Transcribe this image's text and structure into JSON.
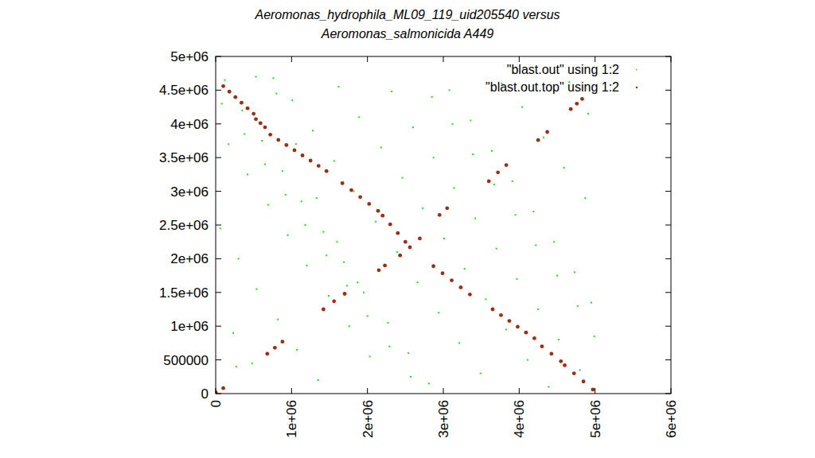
{
  "chart_data": {
    "type": "scatter",
    "title": [
      "Aeromonas_hydrophila_ML09_119_uid205540 versus",
      "Aeromonas_salmonicida A449"
    ],
    "xlim": [
      0,
      6000000
    ],
    "ylim": [
      0,
      5000000
    ],
    "xticks": [
      0,
      {
        "value": 1000000,
        "label": "1e+06"
      },
      {
        "value": 2000000,
        "label": "2e+06"
      },
      {
        "value": 3000000,
        "label": "3e+06"
      },
      {
        "value": 4000000,
        "label": "4e+06"
      },
      {
        "value": 5000000,
        "label": "5e+06"
      },
      {
        "value": 6000000,
        "label": "6e+06"
      }
    ],
    "yticks": [
      0,
      500000,
      {
        "value": 1000000,
        "label": "1e+06"
      },
      {
        "value": 1500000,
        "label": "1.5e+06"
      },
      {
        "value": 2000000,
        "label": "2e+06"
      },
      {
        "value": 2500000,
        "label": "2.5e+06"
      },
      {
        "value": 3000000,
        "label": "3e+06"
      },
      {
        "value": 3500000,
        "label": "3.5e+06"
      },
      {
        "value": 4000000,
        "label": "4e+06"
      },
      {
        "value": 4500000,
        "label": "4.5e+06"
      },
      {
        "value": 5000000,
        "label": "5e+06"
      }
    ],
    "legend": "top-right",
    "series": [
      {
        "name": "\"blast.out\" using 1:2",
        "color": "#22dd22",
        "marker": "square",
        "x": [
          120000,
          350000,
          610000,
          880000,
          1130000,
          1420000,
          1690000,
          1950000,
          2270000,
          2540000,
          2810000,
          3080000,
          3360000,
          3640000,
          3910000,
          4190000,
          4460000,
          4730000,
          4950000,
          230000,
          480000,
          760000,
          1010000,
          1280000,
          1560000,
          1820000,
          2110000,
          2390000,
          2660000,
          2940000,
          3210000,
          3490000,
          3770000,
          4040000,
          4320000,
          4590000,
          4870000,
          60000,
          300000,
          540000,
          820000,
          1070000,
          1350000,
          1620000,
          1890000,
          2180000,
          2460000,
          2730000,
          3010000,
          3280000,
          3560000,
          3830000,
          4110000,
          4390000,
          4660000,
          4910000,
          170000,
          420000,
          690000,
          950000,
          1200000,
          1490000,
          1760000,
          2030000,
          2320000,
          2600000,
          2870000,
          3140000,
          3420000,
          3700000,
          3970000,
          4250000,
          4520000,
          4800000,
          80000,
          380000,
          650000,
          920000,
          1180000,
          1460000,
          1730000,
          2000000,
          2290000,
          2570000,
          2850000,
          3120000,
          3390000,
          3670000,
          3950000,
          4220000,
          4500000,
          4770000,
          4990000,
          270000,
          530000,
          800000,
          1060000,
          1330000,
          1600000,
          1870000
        ],
        "values": [
          4650000,
          4200000,
          3750000,
          3300000,
          2850000,
          2400000,
          1950000,
          1500000,
          1050000,
          600000,
          150000,
          4500000,
          4050000,
          3600000,
          3150000,
          2700000,
          2250000,
          1800000,
          1350000,
          900000,
          450000,
          4680000,
          4350000,
          3900000,
          3450000,
          3000000,
          2550000,
          2100000,
          1650000,
          1200000,
          750000,
          300000,
          4600000,
          4250000,
          3800000,
          3350000,
          2900000,
          2450000,
          2000000,
          1550000,
          1100000,
          650000,
          200000,
          4550000,
          4100000,
          3650000,
          3200000,
          2750000,
          2300000,
          1850000,
          1400000,
          950000,
          500000,
          100000,
          4620000,
          4150000,
          3700000,
          3250000,
          2800000,
          2350000,
          1900000,
          1450000,
          1000000,
          550000,
          4480000,
          3950000,
          3500000,
          3050000,
          2600000,
          2150000,
          1700000,
          1250000,
          800000,
          350000,
          4300000,
          3850000,
          3400000,
          2950000,
          2500000,
          2050000,
          1600000,
          1150000,
          700000,
          250000,
          4400000,
          4000000,
          3550000,
          3100000,
          2650000,
          2200000,
          1750000,
          1300000,
          850000,
          400000,
          4700000,
          4450000,
          3700000,
          2900000,
          2250000,
          1650000
        ]
      },
      {
        "name": "\"blast.out.top\" using 1:2",
        "color": "#a52a0a",
        "marker": "circle",
        "x": [
          100000,
          180000,
          260000,
          340000,
          420000,
          500000,
          530000,
          590000,
          650000,
          720000,
          826000,
          932000,
          1038000,
          1144000,
          1250000,
          1356000,
          1460000,
          1670000,
          1788000,
          1905000,
          2022000,
          2140000,
          2200000,
          2300000,
          2400000,
          2500000,
          2870000,
          2990000,
          3110000,
          3230000,
          3350000,
          3650000,
          3760000,
          3870000,
          3980000,
          4090000,
          4200000,
          4300000,
          4425000,
          4550000,
          4600000,
          4723000,
          4847000,
          4970000,
          0,
          100000,
          680000,
          780000,
          880000,
          1420000,
          1560000,
          1700000,
          2150000,
          2230000,
          2430000,
          2560000,
          2690000,
          2950000,
          3050000,
          3600000,
          3720000,
          3830000,
          4250000,
          4370000,
          4680000,
          4760000,
          4830000
        ],
        "values": [
          4560000,
          4478000,
          4396000,
          4314000,
          4232000,
          4150000,
          4070000,
          4010000,
          3950000,
          3840000,
          3763000,
          3686000,
          3609000,
          3532000,
          3455000,
          3378000,
          3300000,
          3120000,
          3018000,
          2915000,
          2813000,
          2710000,
          2640000,
          2510000,
          2380000,
          2250000,
          1890000,
          1785000,
          1680000,
          1575000,
          1470000,
          1250000,
          1164000,
          1078000,
          992000,
          906000,
          820000,
          700000,
          590000,
          480000,
          420000,
          300000,
          180000,
          60000,
          20000,
          80000,
          590000,
          680000,
          770000,
          1250000,
          1370000,
          1480000,
          1830000,
          1900000,
          2050000,
          2170000,
          2300000,
          2650000,
          2750000,
          3150000,
          3280000,
          3390000,
          3760000,
          3880000,
          4220000,
          4300000,
          4370000
        ]
      }
    ]
  }
}
